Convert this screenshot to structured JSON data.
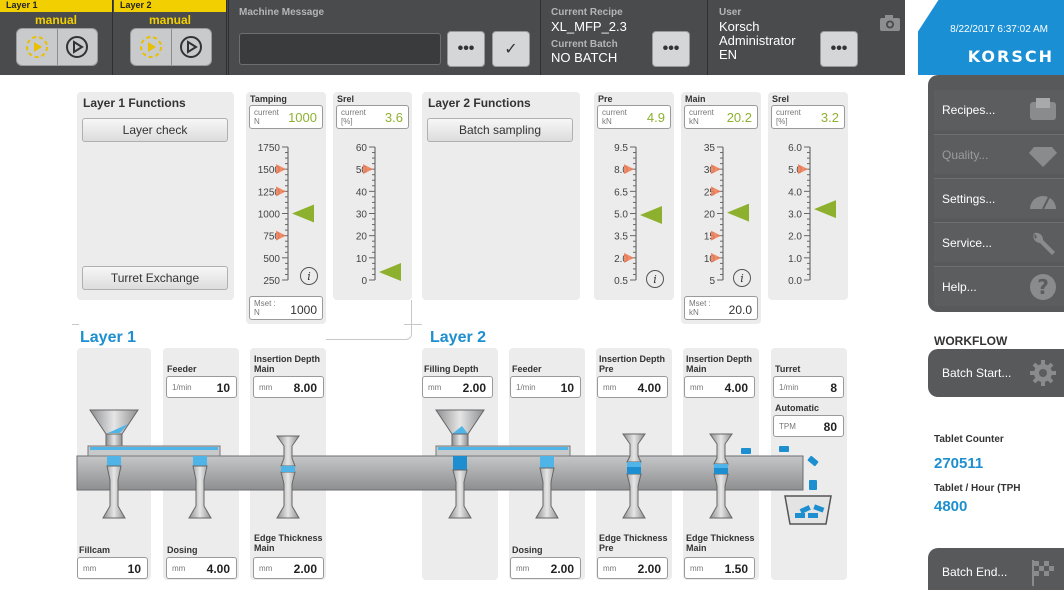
{
  "topbar": {
    "layer1": {
      "tab": "Layer 1",
      "mode": "manual"
    },
    "layer2": {
      "tab": "Layer 2",
      "mode": "manual"
    },
    "machine_message": {
      "label": "Machine Message",
      "value": ""
    },
    "recipe": {
      "label": "Current Recipe",
      "value": "XL_MFP_2.3"
    },
    "batch": {
      "label": "Current Batch",
      "value": "NO BATCH"
    },
    "user": {
      "label": "User",
      "name": "Korsch",
      "role": "Administrator",
      "lang": "EN"
    },
    "datetime": "8/22/2017 6:37:02 AM",
    "brand": "KORSCH",
    "more_label": "•••",
    "check_label": "✓"
  },
  "layer1_functions": {
    "title": "Layer 1 Functions",
    "btn_check": "Layer check",
    "btn_turret": "Turret Exchange"
  },
  "layer2_functions": {
    "title": "Layer 2 Functions",
    "btn_sampling": "Batch sampling"
  },
  "gauges": {
    "tamping": {
      "label": "Tamping",
      "unit": "N",
      "cur_label": "current",
      "current": "1000",
      "mset_label": "Mset :",
      "mset": "1000",
      "ticks": [
        "1750",
        "1500",
        "1250",
        "1000",
        "750",
        "500",
        "250"
      ],
      "min": 250,
      "max": 1750,
      "value": 1000,
      "markers": [
        1500,
        1250,
        750
      ]
    },
    "srel1": {
      "label": "Srel",
      "unit": "[%]",
      "cur_label": "current",
      "current": "3.6",
      "ticks": [
        "60",
        "50",
        "40",
        "30",
        "20",
        "10",
        "0"
      ],
      "min": 0,
      "max": 60,
      "value": 3.6,
      "markers": [
        50
      ]
    },
    "pre": {
      "label": "Pre",
      "unit": "kN",
      "cur_label": "current",
      "current": "4.9",
      "ticks": [
        "9.5",
        "8.0",
        "6.5",
        "5.0",
        "3.5",
        "2.0",
        "0.5"
      ],
      "min": 0.5,
      "max": 9.5,
      "value": 4.9,
      "markers": [
        8.0,
        2.0
      ]
    },
    "main": {
      "label": "Main",
      "unit": "kN",
      "cur_label": "current",
      "current": "20.2",
      "mset_label": "Mset :",
      "mset": "20.0",
      "ticks": [
        "35",
        "30",
        "25",
        "20",
        "15",
        "10",
        "5"
      ],
      "min": 5,
      "max": 35,
      "value": 20.2,
      "markers": [
        30,
        25,
        15,
        10
      ]
    },
    "srel2": {
      "label": "Srel",
      "unit": "[%]",
      "cur_label": "current",
      "current": "3.2",
      "ticks": [
        "6.0",
        "5.0",
        "4.0",
        "3.0",
        "2.0",
        "1.0",
        "0.0"
      ],
      "min": 0,
      "max": 6,
      "value": 3.2,
      "markers": [
        5.0
      ]
    }
  },
  "layer1": {
    "title": "Layer 1",
    "feeder": {
      "label": "Feeder",
      "unit": "1/min",
      "value": "10"
    },
    "insertion_main": {
      "label": "Insertion Depth Main",
      "unit": "mm",
      "value": "8.00"
    },
    "fillcam": {
      "label": "Fillcam",
      "unit": "mm",
      "value": "10"
    },
    "dosing": {
      "label": "Dosing",
      "unit": "mm",
      "value": "4.00"
    },
    "edge_main": {
      "label": "Edge Thickness Main",
      "unit": "mm",
      "value": "2.00"
    }
  },
  "layer2": {
    "title": "Layer 2",
    "filling_depth": {
      "label": "Filling Depth",
      "unit": "mm",
      "value": "2.00"
    },
    "feeder": {
      "label": "Feeder",
      "unit": "1/min",
      "value": "10"
    },
    "insertion_pre": {
      "label": "Insertion Depth Pre",
      "unit": "mm",
      "value": "4.00"
    },
    "insertion_main": {
      "label": "Insertion Depth Main",
      "unit": "mm",
      "value": "4.00"
    },
    "dosing": {
      "label": "Dosing",
      "unit": "mm",
      "value": "2.00"
    },
    "edge_pre": {
      "label": "Edge Thickness Pre",
      "unit": "mm",
      "value": "2.00"
    },
    "edge_main": {
      "label": "Edge Thickness Main",
      "unit": "mm",
      "value": "1.50"
    }
  },
  "turret": {
    "label": "Turret",
    "unit": "1/min",
    "value": "8",
    "auto_label": "Automatic",
    "auto_unit": "TPM",
    "auto_value": "80"
  },
  "sidebar": {
    "recipes": "Recipes...",
    "quality": "Quality...",
    "settings": "Settings...",
    "service": "Service...",
    "help": "Help...",
    "workflow": "WORKFLOW",
    "batch_start": "Batch Start...",
    "batch_end": "Batch End...",
    "tablet_counter_label": "Tablet Counter",
    "tablet_counter": "270511",
    "tablet_hour_label": "Tablet / Hour (TPH",
    "tablet_hour": "4800"
  },
  "colors": {
    "accent": "#1d8fd0",
    "green": "#8db12f",
    "marker": "#f07b54",
    "warning": "#f2cf00"
  }
}
